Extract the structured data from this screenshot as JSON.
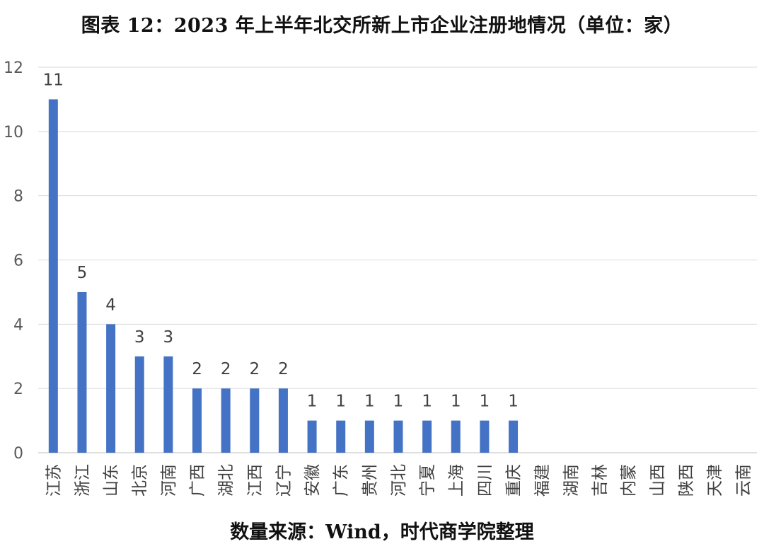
{
  "title": "图表 12：2023 年上半年北交所新上市企业注册地情况（单位：家）",
  "source": "数量来源：Wind，时代商学院整理",
  "chart_data": {
    "type": "bar",
    "title": "图表 12：2023 年上半年北交所新上市企业注册地情况（单位：家）",
    "xlabel": "",
    "ylabel": "",
    "categories": [
      "江苏",
      "浙江",
      "山东",
      "北京",
      "河南",
      "广西",
      "湖北",
      "江西",
      "辽宁",
      "安徽",
      "广东",
      "贵州",
      "河北",
      "宁夏",
      "上海",
      "四川",
      "重庆",
      "福建",
      "湖南",
      "吉林",
      "内蒙",
      "山西",
      "陕西",
      "天津",
      "云南"
    ],
    "values": [
      11,
      5,
      4,
      3,
      3,
      2,
      2,
      2,
      2,
      1,
      1,
      1,
      1,
      1,
      1,
      1,
      1,
      0,
      0,
      0,
      0,
      0,
      0,
      0,
      0
    ],
    "ylim": [
      0,
      12
    ],
    "yticks": [
      0,
      2,
      4,
      6,
      8,
      10,
      12
    ],
    "grid": true,
    "legend": "none",
    "bar_color": "#4472C4",
    "data_labels": true
  }
}
